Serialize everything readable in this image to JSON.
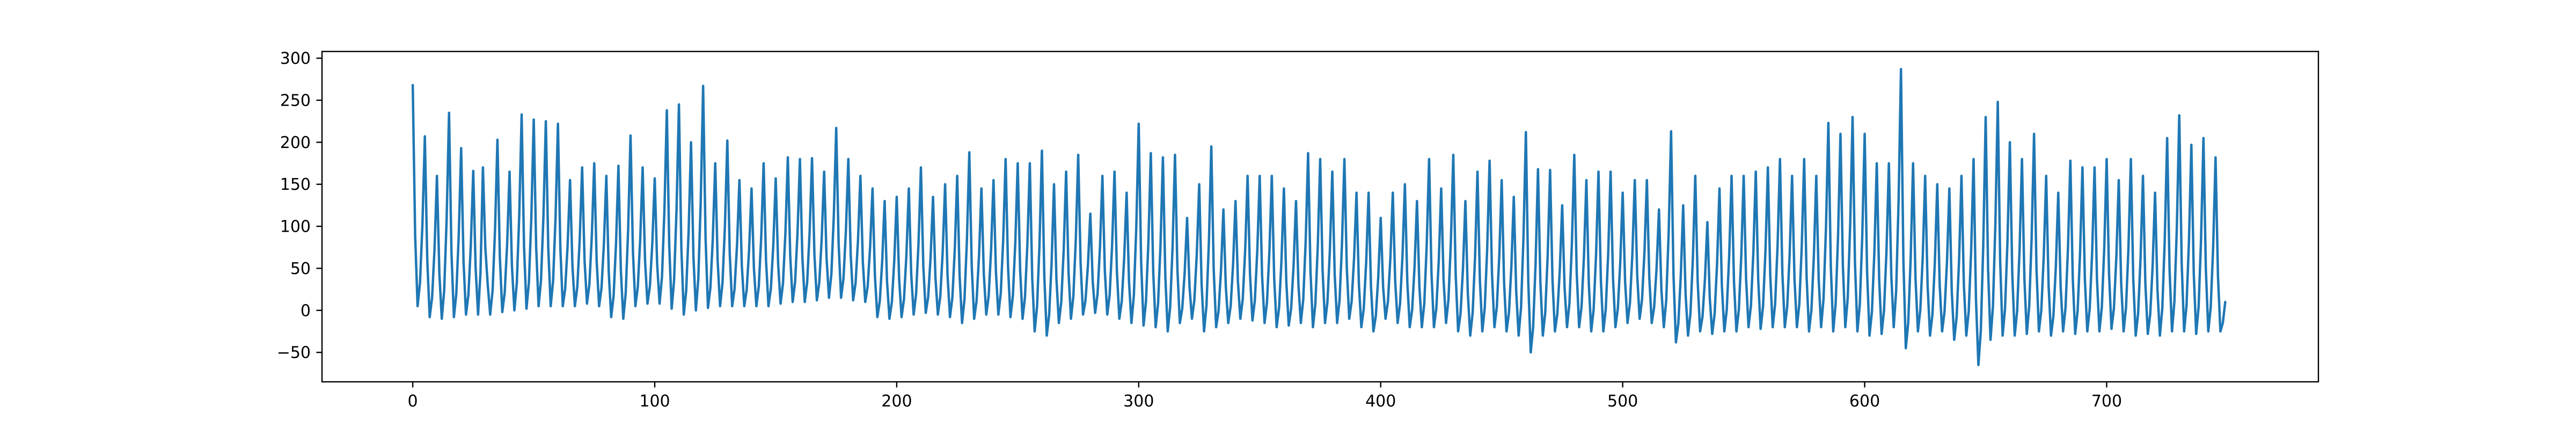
{
  "chart_data": {
    "type": "line",
    "title": "",
    "xlabel": "",
    "ylabel": "",
    "xlim": [
      -37.5,
      787.5
    ],
    "ylim": [
      -85,
      308
    ],
    "xticks": [
      0,
      100,
      200,
      300,
      400,
      500,
      600,
      700
    ],
    "yticks": [
      -50,
      0,
      50,
      100,
      150,
      200,
      250,
      300
    ],
    "xtick_labels": [
      "0",
      "100",
      "200",
      "300",
      "400",
      "500",
      "600",
      "700"
    ],
    "ytick_labels": [
      "−50",
      "0",
      "50",
      "100",
      "150",
      "200",
      "250",
      "300"
    ],
    "grid": false,
    "series": [
      {
        "color": "#1f77b4",
        "sampling": "one value per integer x from 0 to 749, oscillating series with peaks read from the plot",
        "peaks": [
          [
            0,
            268
          ],
          [
            5,
            207
          ],
          [
            10,
            160
          ],
          [
            15,
            235
          ],
          [
            20,
            193
          ],
          [
            25,
            166
          ],
          [
            29,
            170
          ],
          [
            35,
            203
          ],
          [
            40,
            165
          ],
          [
            45,
            233
          ],
          [
            50,
            227
          ],
          [
            55,
            225
          ],
          [
            60,
            222
          ],
          [
            65,
            155
          ],
          [
            70,
            170
          ],
          [
            75,
            175
          ],
          [
            80,
            160
          ],
          [
            85,
            172
          ],
          [
            90,
            208
          ],
          [
            95,
            170
          ],
          [
            100,
            157
          ],
          [
            105,
            238
          ],
          [
            110,
            245
          ],
          [
            115,
            200
          ],
          [
            120,
            267
          ],
          [
            125,
            175
          ],
          [
            130,
            202
          ],
          [
            135,
            155
          ],
          [
            140,
            145
          ],
          [
            145,
            175
          ],
          [
            150,
            157
          ],
          [
            155,
            182
          ],
          [
            160,
            180
          ],
          [
            165,
            181
          ],
          [
            170,
            165
          ],
          [
            175,
            217
          ],
          [
            180,
            180
          ],
          [
            185,
            160
          ],
          [
            190,
            145
          ],
          [
            195,
            130
          ],
          [
            200,
            135
          ],
          [
            205,
            145
          ],
          [
            210,
            170
          ],
          [
            215,
            135
          ],
          [
            220,
            150
          ],
          [
            225,
            160
          ],
          [
            230,
            188
          ],
          [
            235,
            145
          ],
          [
            240,
            155
          ],
          [
            245,
            180
          ],
          [
            250,
            175
          ],
          [
            255,
            175
          ],
          [
            260,
            190
          ],
          [
            265,
            150
          ],
          [
            270,
            165
          ],
          [
            275,
            185
          ],
          [
            280,
            115
          ],
          [
            285,
            160
          ],
          [
            290,
            165
          ],
          [
            295,
            140
          ],
          [
            300,
            222
          ],
          [
            305,
            187
          ],
          [
            310,
            182
          ],
          [
            315,
            185
          ],
          [
            320,
            110
          ],
          [
            325,
            150
          ],
          [
            330,
            195
          ],
          [
            335,
            120
          ],
          [
            340,
            130
          ],
          [
            345,
            160
          ],
          [
            350,
            160
          ],
          [
            355,
            160
          ],
          [
            360,
            145
          ],
          [
            365,
            130
          ],
          [
            370,
            187
          ],
          [
            375,
            180
          ],
          [
            380,
            165
          ],
          [
            385,
            180
          ],
          [
            390,
            140
          ],
          [
            395,
            140
          ],
          [
            400,
            110
          ],
          [
            405,
            140
          ],
          [
            410,
            150
          ],
          [
            415,
            130
          ],
          [
            420,
            180
          ],
          [
            425,
            145
          ],
          [
            430,
            185
          ],
          [
            435,
            130
          ],
          [
            440,
            165
          ],
          [
            445,
            178
          ],
          [
            450,
            155
          ],
          [
            455,
            135
          ],
          [
            460,
            212
          ],
          [
            465,
            168
          ],
          [
            470,
            167
          ],
          [
            475,
            125
          ],
          [
            480,
            185
          ],
          [
            485,
            155
          ],
          [
            490,
            165
          ],
          [
            495,
            165
          ],
          [
            500,
            140
          ],
          [
            505,
            155
          ],
          [
            510,
            155
          ],
          [
            515,
            120
          ],
          [
            520,
            213
          ],
          [
            525,
            125
          ],
          [
            530,
            160
          ],
          [
            535,
            105
          ],
          [
            540,
            145
          ],
          [
            545,
            160
          ],
          [
            550,
            160
          ],
          [
            555,
            165
          ],
          [
            560,
            170
          ],
          [
            565,
            180
          ],
          [
            570,
            160
          ],
          [
            575,
            180
          ],
          [
            580,
            160
          ],
          [
            585,
            223
          ],
          [
            590,
            210
          ],
          [
            595,
            230
          ],
          [
            600,
            210
          ],
          [
            605,
            175
          ],
          [
            610,
            175
          ],
          [
            615,
            287
          ],
          [
            620,
            175
          ],
          [
            625,
            160
          ],
          [
            630,
            150
          ],
          [
            635,
            145
          ],
          [
            640,
            160
          ],
          [
            645,
            180
          ],
          [
            650,
            230
          ],
          [
            655,
            248
          ],
          [
            660,
            200
          ],
          [
            665,
            180
          ],
          [
            670,
            210
          ],
          [
            675,
            160
          ],
          [
            680,
            140
          ],
          [
            685,
            178
          ],
          [
            690,
            170
          ],
          [
            695,
            170
          ],
          [
            700,
            180
          ],
          [
            705,
            155
          ],
          [
            710,
            180
          ],
          [
            715,
            160
          ],
          [
            720,
            140
          ],
          [
            725,
            205
          ],
          [
            730,
            232
          ],
          [
            735,
            197
          ],
          [
            740,
            205
          ],
          [
            745,
            182
          ],
          [
            749,
            10
          ]
        ],
        "troughs": [
          [
            2,
            5
          ],
          [
            7,
            -8
          ],
          [
            12,
            -10
          ],
          [
            17,
            -8
          ],
          [
            22,
            -5
          ],
          [
            27,
            -5
          ],
          [
            32,
            -5
          ],
          [
            37,
            -2
          ],
          [
            42,
            0
          ],
          [
            47,
            2
          ],
          [
            52,
            5
          ],
          [
            57,
            5
          ],
          [
            62,
            5
          ],
          [
            67,
            5
          ],
          [
            72,
            8
          ],
          [
            77,
            5
          ],
          [
            82,
            -8
          ],
          [
            87,
            -10
          ],
          [
            92,
            5
          ],
          [
            97,
            8
          ],
          [
            102,
            8
          ],
          [
            107,
            2
          ],
          [
            112,
            -5
          ],
          [
            117,
            0
          ],
          [
            122,
            3
          ],
          [
            127,
            5
          ],
          [
            132,
            5
          ],
          [
            137,
            5
          ],
          [
            142,
            5
          ],
          [
            147,
            5
          ],
          [
            152,
            8
          ],
          [
            157,
            10
          ],
          [
            162,
            10
          ],
          [
            167,
            12
          ],
          [
            172,
            15
          ],
          [
            177,
            15
          ],
          [
            182,
            12
          ],
          [
            187,
            10
          ],
          [
            192,
            -8
          ],
          [
            197,
            -10
          ],
          [
            202,
            -8
          ],
          [
            207,
            -5
          ],
          [
            212,
            -3
          ],
          [
            217,
            -5
          ],
          [
            222,
            -8
          ],
          [
            227,
            -15
          ],
          [
            232,
            -10
          ],
          [
            237,
            -5
          ],
          [
            242,
            -5
          ],
          [
            247,
            -8
          ],
          [
            252,
            -10
          ],
          [
            257,
            -25
          ],
          [
            262,
            -30
          ],
          [
            267,
            -15
          ],
          [
            272,
            -10
          ],
          [
            277,
            -5
          ],
          [
            282,
            -3
          ],
          [
            287,
            -5
          ],
          [
            292,
            -10
          ],
          [
            297,
            -15
          ],
          [
            302,
            -18
          ],
          [
            307,
            -20
          ],
          [
            312,
            -25
          ],
          [
            317,
            -15
          ],
          [
            322,
            -10
          ],
          [
            327,
            -25
          ],
          [
            332,
            -20
          ],
          [
            337,
            -15
          ],
          [
            342,
            -10
          ],
          [
            347,
            -12
          ],
          [
            352,
            -15
          ],
          [
            357,
            -20
          ],
          [
            362,
            -18
          ],
          [
            367,
            -15
          ],
          [
            372,
            -20
          ],
          [
            377,
            -15
          ],
          [
            382,
            -15
          ],
          [
            387,
            -10
          ],
          [
            392,
            -20
          ],
          [
            397,
            -25
          ],
          [
            402,
            -10
          ],
          [
            407,
            -15
          ],
          [
            412,
            -20
          ],
          [
            417,
            -20
          ],
          [
            422,
            -20
          ],
          [
            427,
            -15
          ],
          [
            432,
            -25
          ],
          [
            437,
            -30
          ],
          [
            442,
            -25
          ],
          [
            447,
            -20
          ],
          [
            452,
            -25
          ],
          [
            457,
            -30
          ],
          [
            462,
            -50
          ],
          [
            467,
            -30
          ],
          [
            472,
            -25
          ],
          [
            477,
            -20
          ],
          [
            482,
            -20
          ],
          [
            487,
            -25
          ],
          [
            492,
            -25
          ],
          [
            497,
            -20
          ],
          [
            502,
            -15
          ],
          [
            507,
            -10
          ],
          [
            512,
            -15
          ],
          [
            517,
            -20
          ],
          [
            522,
            -38
          ],
          [
            527,
            -30
          ],
          [
            532,
            -25
          ],
          [
            537,
            -28
          ],
          [
            542,
            -25
          ],
          [
            547,
            -25
          ],
          [
            552,
            -20
          ],
          [
            557,
            -22
          ],
          [
            562,
            -20
          ],
          [
            567,
            -20
          ],
          [
            572,
            -20
          ],
          [
            577,
            -25
          ],
          [
            582,
            -20
          ],
          [
            587,
            -25
          ],
          [
            592,
            -20
          ],
          [
            597,
            -25
          ],
          [
            602,
            -30
          ],
          [
            607,
            -28
          ],
          [
            612,
            -20
          ],
          [
            617,
            -45
          ],
          [
            622,
            -25
          ],
          [
            627,
            -30
          ],
          [
            632,
            -25
          ],
          [
            637,
            -35
          ],
          [
            642,
            -30
          ],
          [
            647,
            -65
          ],
          [
            652,
            -35
          ],
          [
            657,
            -30
          ],
          [
            662,
            -30
          ],
          [
            667,
            -28
          ],
          [
            672,
            -25
          ],
          [
            677,
            -30
          ],
          [
            682,
            -25
          ],
          [
            687,
            -28
          ],
          [
            692,
            -25
          ],
          [
            697,
            -25
          ],
          [
            702,
            -22
          ],
          [
            707,
            -25
          ],
          [
            712,
            -30
          ],
          [
            717,
            -28
          ],
          [
            722,
            -30
          ],
          [
            727,
            -25
          ],
          [
            732,
            -25
          ],
          [
            737,
            -28
          ],
          [
            742,
            -25
          ],
          [
            747,
            -25
          ]
        ]
      }
    ]
  }
}
